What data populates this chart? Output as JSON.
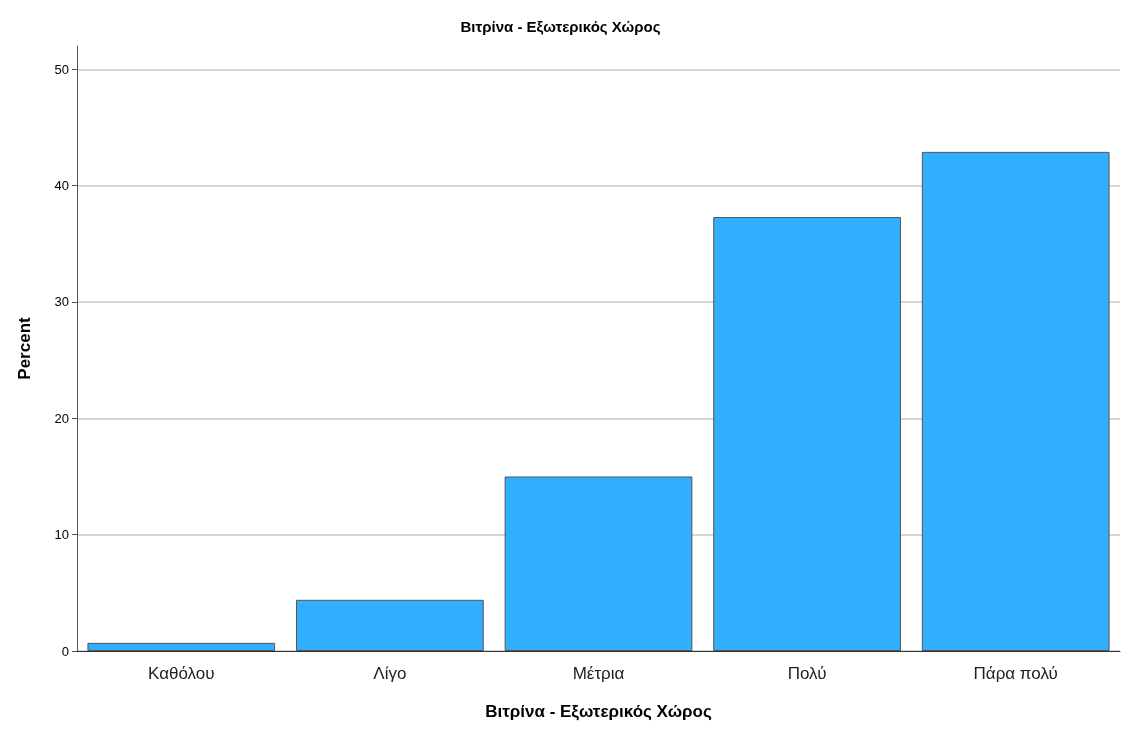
{
  "chart_data": {
    "type": "bar",
    "title": "Βιτρίνα - Εξωτερικός Χώρος",
    "xlabel": "Βιτρίνα - Εξωτερικός Χώρος",
    "ylabel": "Percent",
    "categories": [
      "Καθόλου",
      "Λίγο",
      "Μέτρια",
      "Πολύ",
      "Πάρα πολύ"
    ],
    "values": [
      0.7,
      4.4,
      15.0,
      37.3,
      42.9
    ],
    "color": "#31aefe",
    "ylim": [
      0,
      52
    ],
    "yticks": [
      0,
      10,
      20,
      30,
      40,
      50
    ],
    "grid": "y"
  }
}
